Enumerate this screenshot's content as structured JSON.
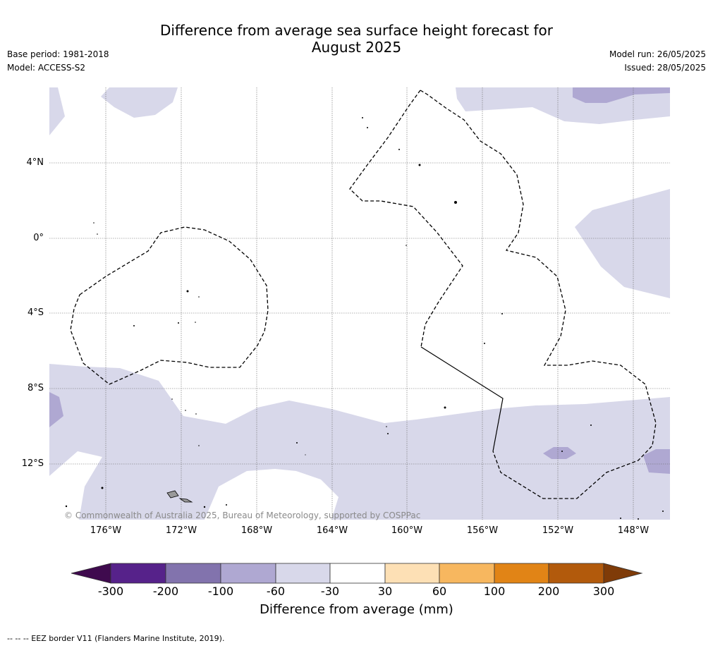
{
  "title_line1": "Difference from average sea surface height forecast for",
  "title_line2": "August 2025",
  "base_period": "Base period: 1981-2018",
  "model": "Model: ACCESS-S2",
  "model_run": "Model run: 26/05/2025",
  "issued": "Issued: 28/05/2025",
  "map": {
    "lat_labels": [
      "4°N",
      "0°",
      "4°S",
      "8°S",
      "12°S"
    ],
    "lon_labels": [
      "176°W",
      "172°W",
      "168°W",
      "164°W",
      "160°W",
      "156°W",
      "152°W",
      "148°W"
    ],
    "credit": "© Commonwealth of Australia 2025, Bureau of Meteorology, supported by COSPPac"
  },
  "colorbar": {
    "ticks": [
      "-300",
      "-200",
      "-100",
      "-60",
      "-30",
      "30",
      "60",
      "100",
      "200",
      "300"
    ],
    "colors": [
      "#3f0a4e",
      "#56228a",
      "#8273ad",
      "#afa8d2",
      "#d8d8ea",
      "#ffffff",
      "#fde0b5",
      "#f7b75f",
      "#e18416",
      "#b25a0c",
      "#7f3b08"
    ],
    "label": "Difference from average (mm)"
  },
  "footnote": "--  --  -- EEZ border V11 (Flanders Marine Institute, 2019)."
}
